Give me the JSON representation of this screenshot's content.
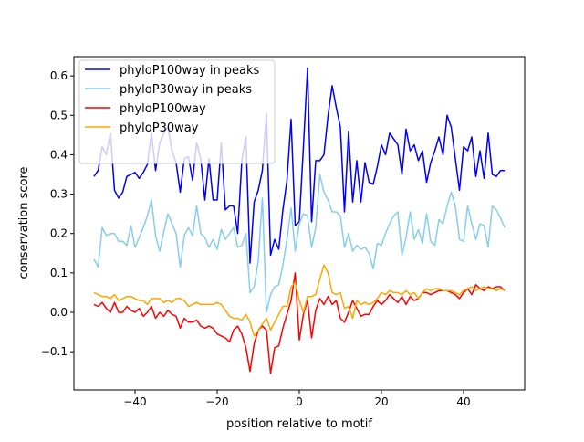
{
  "chart_data": {
    "type": "line",
    "title": "",
    "xlabel": "position relative to motif",
    "ylabel": "conservation score",
    "xlim": [
      -54.9,
      54.9
    ],
    "ylim": [
      -0.197,
      0.649
    ],
    "xticks": [
      -40,
      -20,
      0,
      20,
      40
    ],
    "xtick_labels": [
      "−40",
      "−20",
      "0",
      "20",
      "40"
    ],
    "yticks": [
      -0.1,
      0.0,
      0.1,
      0.2,
      0.3,
      0.4,
      0.5,
      0.6
    ],
    "ytick_labels": [
      "−0.1",
      "0.0",
      "0.1",
      "0.2",
      "0.3",
      "0.4",
      "0.5",
      "0.6"
    ],
    "grid": false,
    "legend_position": "top-left",
    "x_start": -50,
    "x_step": 1,
    "series": [
      {
        "name": "phyloP100way in peaks",
        "color": "#0000ff",
        "values": [
          0.345,
          0.36,
          0.42,
          0.4,
          0.455,
          0.31,
          0.29,
          0.305,
          0.345,
          0.35,
          0.355,
          0.34,
          0.355,
          0.375,
          0.455,
          0.36,
          0.43,
          0.455,
          0.47,
          0.41,
          0.38,
          0.305,
          0.39,
          0.395,
          0.335,
          0.43,
          0.39,
          0.285,
          0.39,
          0.285,
          0.285,
          0.43,
          0.26,
          0.27,
          0.27,
          0.2,
          0.385,
          0.445,
          0.125,
          0.28,
          0.31,
          0.36,
          0.505,
          0.145,
          0.185,
          0.16,
          0.26,
          0.335,
          0.49,
          0.22,
          0.23,
          0.42,
          0.62,
          0.23,
          0.385,
          0.385,
          0.4,
          0.5,
          0.575,
          0.52,
          0.47,
          0.255,
          0.46,
          0.28,
          0.385,
          0.28,
          0.38,
          0.33,
          0.325,
          0.37,
          0.425,
          0.4,
          0.455,
          0.44,
          0.425,
          0.35,
          0.465,
          0.41,
          0.425,
          0.385,
          0.41,
          0.33,
          0.38,
          0.41,
          0.445,
          0.4,
          0.5,
          0.47,
          0.39,
          0.31,
          0.42,
          0.41,
          0.445,
          0.345,
          0.41,
          0.34,
          0.455,
          0.35,
          0.345,
          0.36,
          0.36
        ]
      },
      {
        "name": "phyloP30way in peaks",
        "color": "#87ceeb",
        "values": [
          0.135,
          0.115,
          0.215,
          0.195,
          0.2,
          0.2,
          0.18,
          0.18,
          0.17,
          0.22,
          0.165,
          0.19,
          0.215,
          0.245,
          0.285,
          0.195,
          0.155,
          0.205,
          0.25,
          0.225,
          0.2,
          0.115,
          0.195,
          0.215,
          0.195,
          0.27,
          0.2,
          0.19,
          0.165,
          0.185,
          0.16,
          0.21,
          0.185,
          0.2,
          0.215,
          0.165,
          0.17,
          0.2,
          0.05,
          0.065,
          0.13,
          0.29,
          0.0,
          0.045,
          0.065,
          0.07,
          0.12,
          0.185,
          0.265,
          0.155,
          0.225,
          0.25,
          0.245,
          0.165,
          0.215,
          0.35,
          0.305,
          0.285,
          0.255,
          0.255,
          0.245,
          0.165,
          0.2,
          0.155,
          0.17,
          0.16,
          0.165,
          0.15,
          0.11,
          0.175,
          0.17,
          0.2,
          0.225,
          0.245,
          0.255,
          0.145,
          0.19,
          0.255,
          0.185,
          0.21,
          0.175,
          0.25,
          0.18,
          0.17,
          0.235,
          0.225,
          0.27,
          0.305,
          0.27,
          0.185,
          0.18,
          0.27,
          0.225,
          0.185,
          0.225,
          0.22,
          0.165,
          0.27,
          0.26,
          0.24,
          0.215
        ]
      },
      {
        "name": "phyloP100way",
        "color": "#ff0000",
        "values": [
          0.02,
          0.015,
          0.025,
          0.01,
          0.0,
          0.025,
          0.0,
          0.0,
          0.015,
          0.005,
          0.0,
          0.01,
          -0.01,
          0.0,
          0.015,
          -0.015,
          0.0,
          -0.01,
          0.005,
          -0.005,
          -0.01,
          -0.04,
          -0.015,
          -0.025,
          -0.025,
          -0.02,
          -0.035,
          -0.04,
          -0.035,
          -0.04,
          -0.055,
          -0.06,
          -0.065,
          -0.075,
          -0.045,
          -0.035,
          -0.055,
          -0.09,
          -0.15,
          -0.08,
          -0.045,
          -0.035,
          -0.045,
          -0.155,
          -0.09,
          -0.085,
          -0.04,
          -0.005,
          0.03,
          0.1,
          -0.07,
          -0.005,
          0.03,
          -0.065,
          0.005,
          0.035,
          0.02,
          0.04,
          0.02,
          0.03,
          -0.015,
          -0.025,
          0.0,
          0.03,
          0.01,
          -0.01,
          -0.005,
          -0.005,
          0.015,
          0.03,
          0.02,
          0.03,
          0.045,
          0.035,
          0.025,
          0.04,
          0.02,
          0.04,
          0.03,
          0.035,
          0.05,
          0.05,
          0.045,
          0.05,
          0.055,
          0.055,
          0.055,
          0.05,
          0.045,
          0.035,
          0.05,
          0.06,
          0.045,
          0.07,
          0.06,
          0.055,
          0.065,
          0.06,
          0.065,
          0.065,
          0.055
        ]
      },
      {
        "name": "phyloP30way",
        "color": "#ffa500",
        "values": [
          0.05,
          0.045,
          0.04,
          0.04,
          0.035,
          0.045,
          0.03,
          0.035,
          0.04,
          0.04,
          0.035,
          0.03,
          0.03,
          0.02,
          0.035,
          0.035,
          0.035,
          0.025,
          0.03,
          0.025,
          0.035,
          0.035,
          0.03,
          0.015,
          0.02,
          0.025,
          0.02,
          0.02,
          0.02,
          0.02,
          0.025,
          0.02,
          0.005,
          -0.01,
          -0.015,
          -0.015,
          -0.02,
          -0.005,
          -0.025,
          -0.06,
          -0.045,
          -0.03,
          -0.015,
          -0.045,
          -0.025,
          -0.005,
          0.015,
          0.015,
          0.065,
          0.075,
          0.03,
          0.0,
          0.04,
          0.04,
          0.045,
          0.085,
          0.12,
          0.1,
          0.05,
          0.045,
          0.05,
          0.01,
          0.015,
          -0.015,
          0.03,
          0.02,
          0.025,
          0.02,
          0.025,
          0.035,
          0.05,
          0.045,
          0.055,
          0.05,
          0.05,
          0.045,
          0.055,
          0.045,
          0.05,
          0.035,
          0.05,
          0.06,
          0.055,
          0.06,
          0.06,
          0.055,
          0.055,
          0.055,
          0.05,
          0.045,
          0.055,
          0.06,
          0.065,
          0.055,
          0.06,
          0.065,
          0.06,
          0.06,
          0.055,
          0.06,
          0.055
        ]
      }
    ]
  }
}
